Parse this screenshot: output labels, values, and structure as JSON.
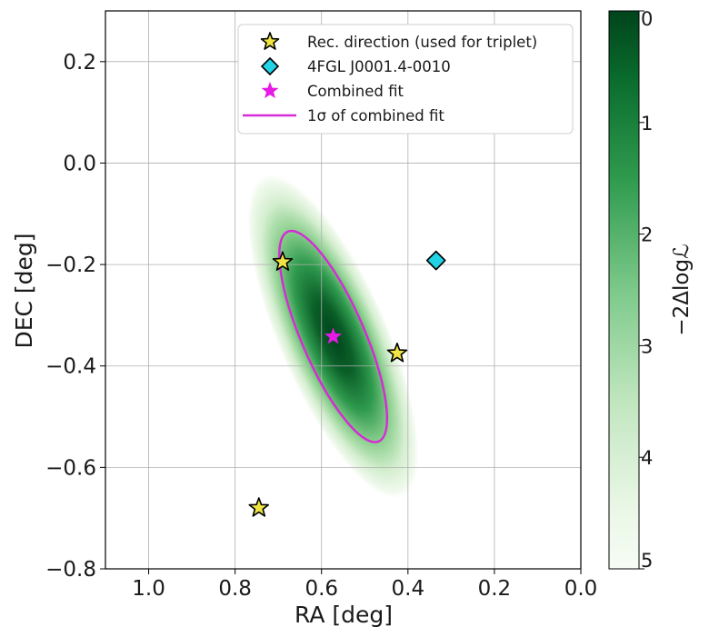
{
  "chart_data": {
    "type": "scatter",
    "title": "",
    "xlabel": "RA [deg]",
    "ylabel": "DEC [deg]",
    "xlim": [
      1.1,
      0.0
    ],
    "ylim": [
      -0.8,
      0.3
    ],
    "x_inverted": true,
    "grid": true,
    "x_ticks": [
      1.0,
      0.8,
      0.6,
      0.4,
      0.2,
      0.0
    ],
    "x_tick_labels": [
      "1.0",
      "0.8",
      "0.6",
      "0.4",
      "0.2",
      "0.0"
    ],
    "y_ticks": [
      0.2,
      0.0,
      -0.2,
      -0.4,
      -0.6,
      -0.8
    ],
    "y_tick_labels": [
      "0.2",
      "0.0",
      "−0.2",
      "−0.4",
      "−0.6",
      "−0.8"
    ],
    "legend_position": "top-right",
    "series": [
      {
        "name": "Rec. direction (used for triplet)",
        "marker": "star",
        "color": "#f0e442",
        "edge_color": "#000000",
        "points": [
          {
            "x": 0.69,
            "y": -0.195
          },
          {
            "x": 0.425,
            "y": -0.375
          },
          {
            "x": 0.745,
            "y": -0.68
          }
        ]
      },
      {
        "name": "4FGL J0001.4-0010",
        "marker": "diamond",
        "color": "#22d3e6",
        "edge_color": "#000000",
        "points": [
          {
            "x": 0.335,
            "y": -0.192
          }
        ]
      },
      {
        "name": "Combined fit",
        "marker": "star",
        "color": "#e619e6",
        "points": [
          {
            "x": 0.573,
            "y": -0.342
          }
        ]
      },
      {
        "name": "1σ of combined fit",
        "marker": "ellipse",
        "color": "#d62ad6",
        "ellipse": {
          "center_x": 0.573,
          "center_y": -0.342,
          "semi_major": 0.232,
          "semi_minor": 0.07,
          "orientation_deg": 63
        }
      }
    ],
    "heatmap": {
      "colormap": "Greens (reversed)",
      "colorbar_label": "−2Δlogℒ",
      "range": [
        0,
        5
      ],
      "ticks": [
        "0",
        "1",
        "2",
        "3",
        "4",
        "5"
      ],
      "peak": {
        "x": 0.573,
        "y": -0.342
      },
      "dark_color": "#00441b",
      "light_color": "#f7fcf5"
    }
  }
}
